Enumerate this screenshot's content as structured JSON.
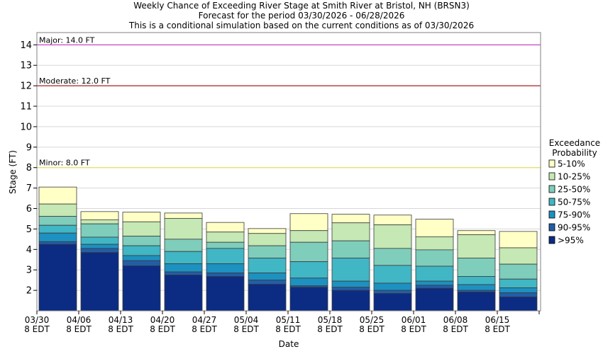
{
  "chart_data": {
    "type": "bar",
    "stacked": true,
    "title_lines": [
      "Weekly Chance of Exceeding River Stage at Smith River at Bristol, NH (BRSN3)",
      "Forecast for the period 03/30/2026 - 06/28/2026",
      "This is a conditional simulation based on the current conditions as of 03/30/2026"
    ],
    "xlabel": "Date",
    "ylabel": "Stage (FT)",
    "ylim": [
      1.0,
      14.6
    ],
    "yticks": [
      2,
      3,
      4,
      5,
      6,
      7,
      8,
      9,
      10,
      11,
      12,
      13,
      14
    ],
    "xtick_labels": [
      [
        "03/30",
        "8 EDT"
      ],
      [
        "04/06",
        "8 EDT"
      ],
      [
        "04/13",
        "8 EDT"
      ],
      [
        "04/20",
        "8 EDT"
      ],
      [
        "04/27",
        "8 EDT"
      ],
      [
        "05/04",
        "8 EDT"
      ],
      [
        "05/11",
        "8 EDT"
      ],
      [
        "05/18",
        "8 EDT"
      ],
      [
        "05/25",
        "8 EDT"
      ],
      [
        "06/01",
        "8 EDT"
      ],
      [
        "06/08",
        "8 EDT"
      ],
      [
        "06/15",
        "8 EDT"
      ]
    ],
    "thresholds": [
      {
        "label": "Major: 14.0 FT",
        "value": 14.0,
        "color": "#cc44cc"
      },
      {
        "label": "Moderate: 12.0 FT",
        "value": 12.0,
        "color": "#aa2222"
      },
      {
        "label": "Minor: 8.0 FT",
        "value": 8.0,
        "color": "#e8e060"
      }
    ],
    "legend": {
      "title": [
        "Exceedance",
        "Probability"
      ],
      "placement": "right",
      "entries": [
        {
          "name": "5-10%",
          "color": "#ffffc6"
        },
        {
          "name": "10-25%",
          "color": "#c5e8b4"
        },
        {
          "name": "25-50%",
          "color": "#7fcdbb"
        },
        {
          "name": "50-75%",
          "color": "#41b6c4"
        },
        {
          "name": "75-90%",
          "color": "#1d91c0"
        },
        {
          "name": "90-95%",
          "color": "#225ea8"
        },
        {
          "name": ">95%",
          "color": "#0c2c84"
        }
      ]
    },
    "weeks": [
      {
        "stages": [
          7.05,
          6.22,
          5.62,
          5.18,
          4.8,
          4.38,
          4.25
        ]
      },
      {
        "stages": [
          5.85,
          5.45,
          5.25,
          4.6,
          4.25,
          4.05,
          3.85
        ]
      },
      {
        "stages": [
          5.82,
          5.35,
          4.65,
          4.18,
          3.7,
          3.45,
          3.2
        ]
      },
      {
        "stages": [
          5.78,
          5.52,
          4.5,
          3.9,
          3.3,
          2.9,
          2.75
        ]
      },
      {
        "stages": [
          5.32,
          4.85,
          4.35,
          4.05,
          3.3,
          2.85,
          2.68
        ]
      },
      {
        "stages": [
          5.02,
          4.78,
          4.18,
          3.58,
          2.85,
          2.5,
          2.3
        ]
      },
      {
        "stages": [
          5.75,
          4.92,
          4.35,
          3.4,
          2.6,
          2.22,
          2.15
        ]
      },
      {
        "stages": [
          5.72,
          5.3,
          4.42,
          3.58,
          2.45,
          2.15,
          2.0
        ]
      },
      {
        "stages": [
          5.68,
          5.2,
          4.05,
          3.22,
          2.35,
          2.0,
          1.85
        ]
      },
      {
        "stages": [
          5.48,
          4.62,
          3.98,
          3.18,
          2.45,
          2.25,
          2.1
        ]
      },
      {
        "stages": [
          4.92,
          4.72,
          3.58,
          2.68,
          2.28,
          2.0,
          1.92
        ]
      },
      {
        "stages": [
          4.88,
          4.08,
          3.28,
          2.55,
          2.12,
          1.88,
          1.68
        ]
      }
    ]
  }
}
